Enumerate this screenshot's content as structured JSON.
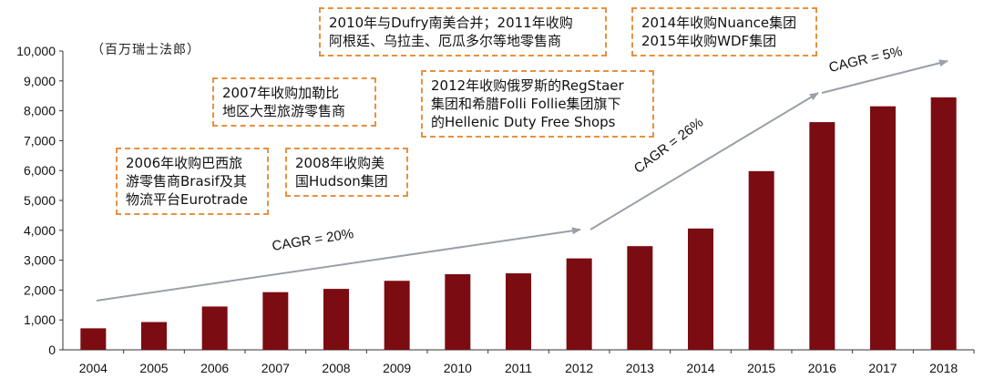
{
  "chart_data": {
    "type": "bar",
    "unit_label": "（百万瑞士法郎）",
    "categories": [
      "2004",
      "2005",
      "2006",
      "2007",
      "2008",
      "2009",
      "2010",
      "2011",
      "2012",
      "2013",
      "2014",
      "2015",
      "2016",
      "2017",
      "2018"
    ],
    "values": [
      720,
      930,
      1450,
      1930,
      2040,
      2310,
      2530,
      2560,
      3060,
      3470,
      4060,
      5980,
      7620,
      8150,
      8450
    ],
    "ylim": [
      0,
      10000
    ],
    "yticks": [
      "0",
      "1,000",
      "2,000",
      "3,000",
      "4,000",
      "5,000",
      "6,000",
      "7,000",
      "8,000",
      "9,000",
      "10,000"
    ],
    "bar_color": "#7b0c12",
    "annotation_border_color": "#e8913f",
    "arrow_color": "#9a9fa8",
    "annotations": [
      {
        "id": "note-2006",
        "lines": [
          "2006年收购巴西旅",
          "游零售商Brasif及其",
          "物流平台Eurotrade"
        ]
      },
      {
        "id": "note-2007",
        "lines": [
          "2007年收购加勒比",
          "地区大型旅游零售商"
        ]
      },
      {
        "id": "note-2008",
        "lines": [
          "2008年收购美",
          "国Hudson集团"
        ]
      },
      {
        "id": "note-2010",
        "lines": [
          "2010年与Dufry南美合并；2011年收购",
          "阿根廷、乌拉圭、厄瓜多尔等地零售商"
        ]
      },
      {
        "id": "note-2012",
        "lines": [
          "2012年收购俄罗斯的RegStaer",
          "集团和希腊Folli Follie集团旗下",
          "的Hellenic Duty Free Shops"
        ]
      },
      {
        "id": "note-2014",
        "lines": [
          "2014年收购Nuance集团",
          "2015年收购WDF集团"
        ]
      }
    ],
    "cagr_labels": [
      {
        "id": "cagr-1",
        "text": "CAGR = 20%"
      },
      {
        "id": "cagr-2",
        "text": "CAGR = 26%"
      },
      {
        "id": "cagr-3",
        "text": "CAGR = 5%"
      }
    ]
  }
}
